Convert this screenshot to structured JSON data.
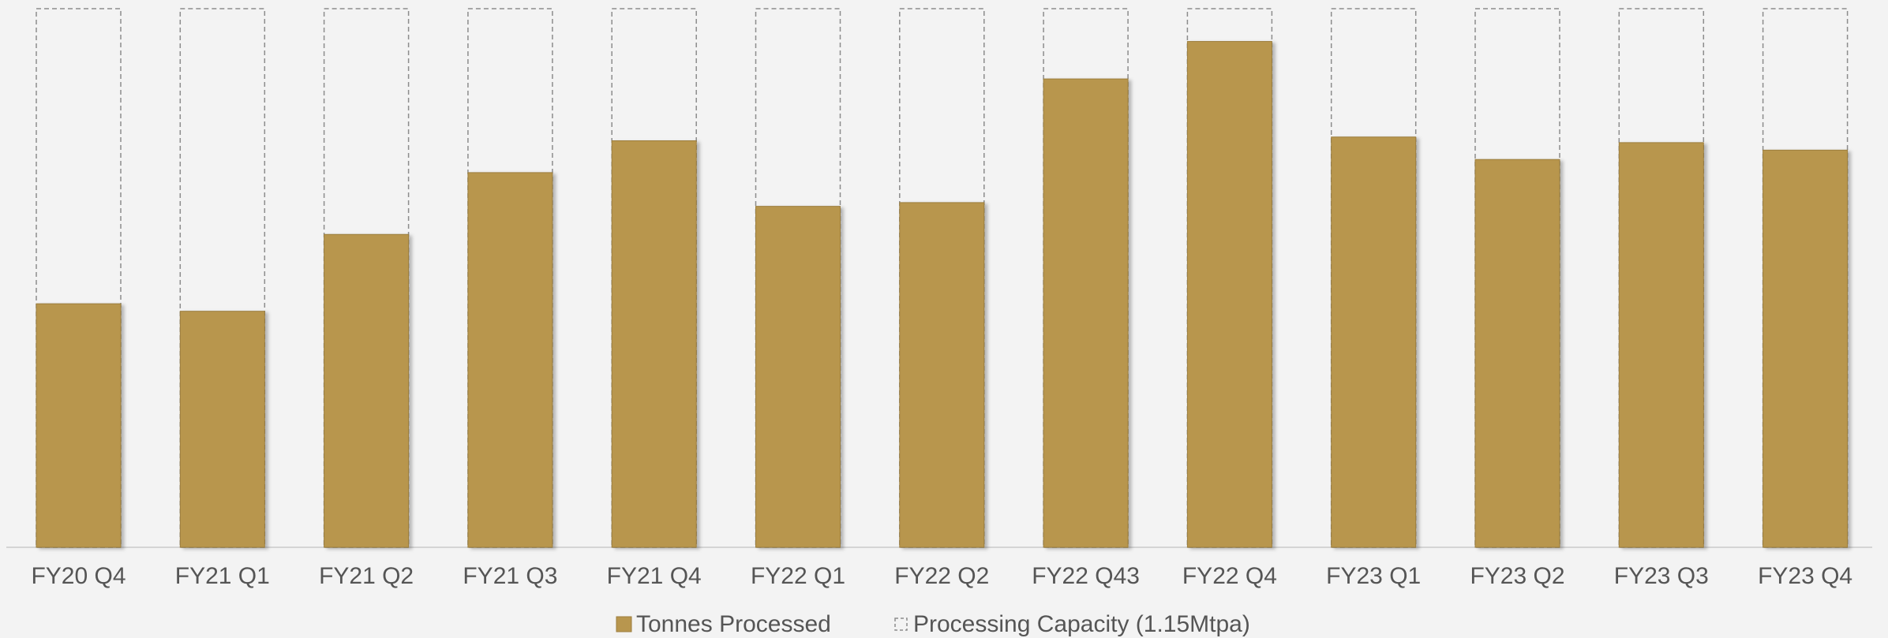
{
  "chart_data": {
    "type": "bar",
    "categories": [
      "FY20 Q4",
      "FY21 Q1",
      "FY21 Q2",
      "FY21 Q3",
      "FY21 Q4",
      "FY22 Q1",
      "FY22 Q2",
      "FY22 Q43",
      "FY22 Q4",
      "FY23 Q1",
      "FY23 Q2",
      "FY23 Q3",
      "FY23 Q4"
    ],
    "series": [
      {
        "name": "Tonnes Processed",
        "color": "#b8964e",
        "values": [
          130000,
          126000,
          167000,
          200000,
          217000,
          182000,
          184000,
          250000,
          270000,
          219000,
          207000,
          216000,
          212000
        ]
      },
      {
        "name": "Processing Capacity (1.15Mtpa)",
        "color": "#8c8c8c",
        "dashed": true,
        "values": [
          287500,
          287500,
          287500,
          287500,
          287500,
          287500,
          287500,
          287500,
          287500,
          287500,
          287500,
          287500,
          287500
        ]
      }
    ],
    "ylim": [
      0,
      287500
    ],
    "legend": "bottom"
  }
}
